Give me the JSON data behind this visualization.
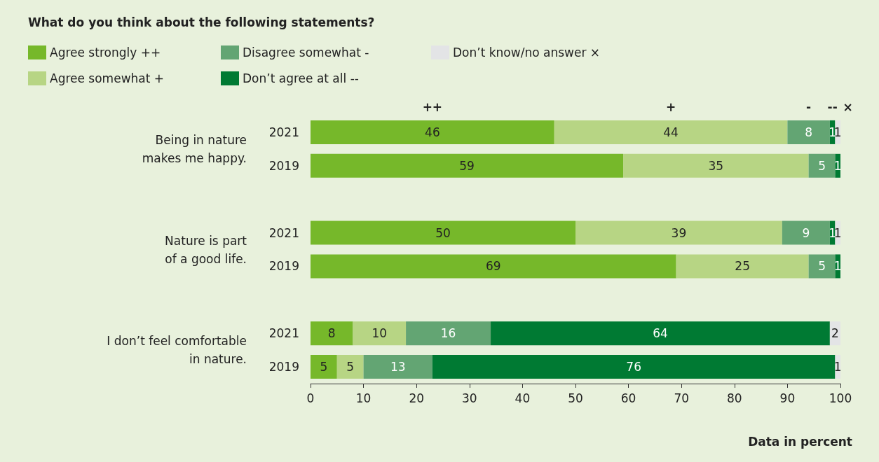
{
  "chart_data": {
    "type": "bar",
    "orientation": "horizontal",
    "stacked": true,
    "title": "What do you think about the following statements?",
    "xlabel": "Data in percent",
    "categories": [
      "2021",
      "2019",
      null,
      "2021",
      "2019",
      null,
      "2021",
      "2019"
    ],
    "series": [
      {
        "name": "Agree strongly ++",
        "color": "#76b82a",
        "values": [
          46,
          59,
          null,
          50,
          69,
          null,
          8,
          5
        ]
      },
      {
        "name": "Agree somewhat +",
        "color": "#b7d584",
        "values": [
          44,
          35,
          null,
          39,
          25,
          null,
          10,
          5
        ]
      },
      {
        "name": "Disagree somewhat -",
        "color": "#63a573",
        "values": [
          8,
          5,
          null,
          9,
          5,
          null,
          16,
          13
        ]
      },
      {
        "name": "Don’t agree at all --",
        "color": "#007a33",
        "values": [
          1,
          1,
          null,
          1,
          1,
          null,
          64,
          76
        ]
      },
      {
        "name": "Don’t know/no answer ×",
        "color": "#e3e4e6",
        "values": [
          1,
          null,
          null,
          1,
          null,
          null,
          2,
          1
        ]
      }
    ],
    "data_labels": true,
    "xlim": [
      0,
      100
    ],
    "xticks": [
      0,
      10,
      20,
      30,
      40,
      50,
      60,
      70,
      80,
      90,
      100
    ],
    "grid": false,
    "legend": "top left",
    "annotations": [
      "Being in nature\nmakes me happy.",
      "Nature is part\nof a good life.",
      "I don’t feel comfortable\nin nature.",
      "++",
      "+",
      "-",
      "--",
      "×"
    ]
  }
}
